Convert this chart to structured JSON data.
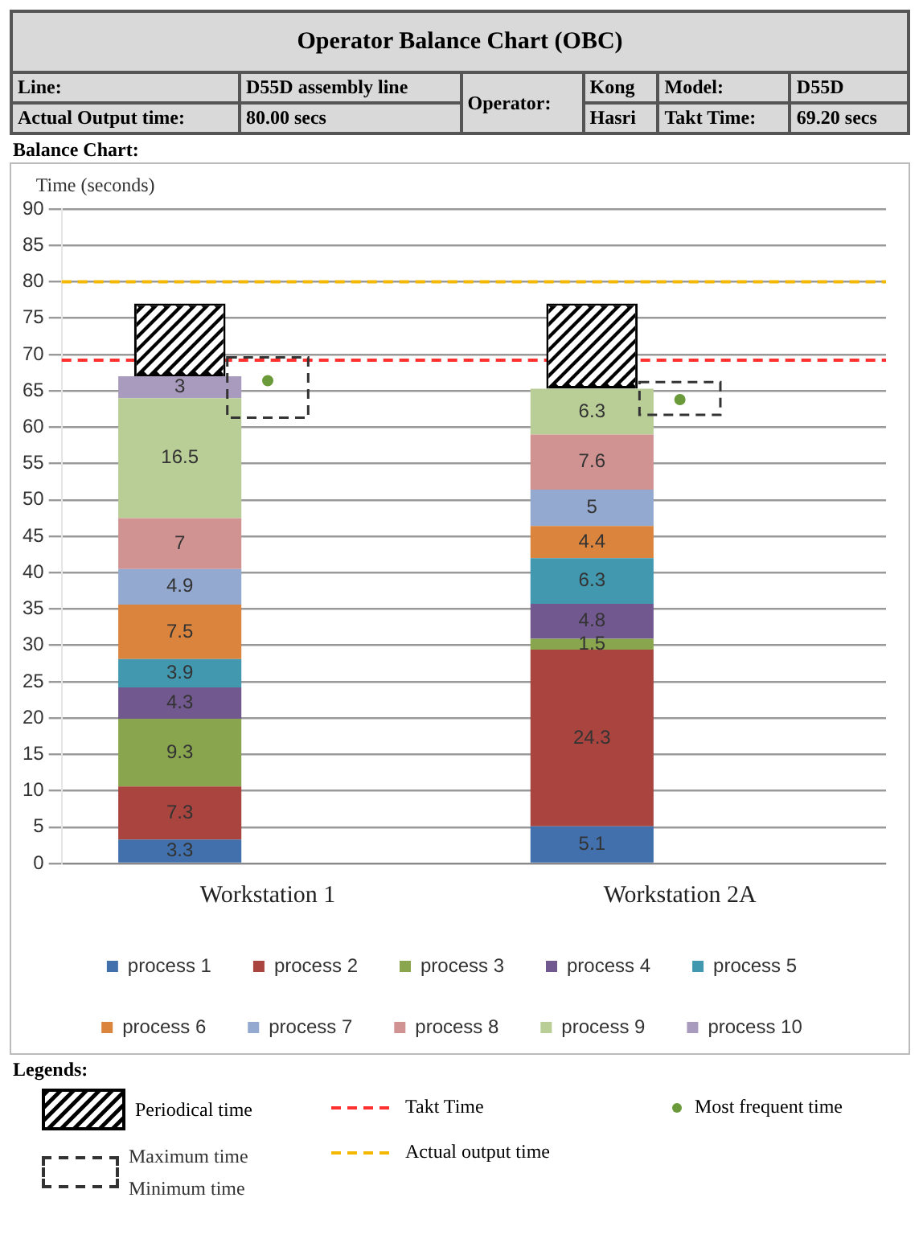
{
  "chart_data": {
    "type": "bar",
    "title": "Operator Balance Chart (OBC)",
    "ylabel": "Time (seconds)",
    "categories": [
      "Workstation 1",
      "Workstation 2A"
    ],
    "ylim": [
      0,
      90
    ],
    "yticks": [
      0,
      5,
      10,
      15,
      20,
      25,
      30,
      35,
      40,
      45,
      50,
      55,
      60,
      65,
      70,
      75,
      80,
      85,
      90
    ],
    "grid": "y",
    "legend": "bottom",
    "series": [
      {
        "name": "process 1",
        "color": "#4170ac",
        "base": [
          0,
          0
        ],
        "values": [
          3.3,
          5.1
        ],
        "value_labels": [
          "3.3",
          "5.1"
        ]
      },
      {
        "name": "process 2",
        "color": "#a9443f",
        "base": [
          3.3,
          5.1
        ],
        "values": [
          7.3,
          24.3
        ],
        "value_labels": [
          "7.3",
          "24.3"
        ]
      },
      {
        "name": "process 3",
        "color": "#89a54e",
        "base": [
          10.6,
          29.4
        ],
        "values": [
          9.3,
          1.5
        ],
        "value_labels": [
          "9.3",
          "1.5"
        ]
      },
      {
        "name": "process 4",
        "color": "#71588f",
        "base": [
          19.9,
          30.9
        ],
        "values": [
          4.3,
          4.8
        ],
        "value_labels": [
          "4.3",
          "4.8"
        ]
      },
      {
        "name": "process 5",
        "color": "#4198af",
        "base": [
          24.2,
          35.7
        ],
        "values": [
          3.9,
          6.3
        ],
        "value_labels": [
          "3.9",
          "6.3"
        ]
      },
      {
        "name": "process 6",
        "color": "#db843d",
        "base": [
          28.1,
          42
        ],
        "values": [
          7.5,
          4.4
        ],
        "value_labels": [
          "7.5",
          "4.4"
        ]
      },
      {
        "name": "process 7",
        "color": "#93a9cf",
        "base": [
          35.6,
          46.4
        ],
        "values": [
          4.9,
          5
        ],
        "value_labels": [
          "4.9",
          "5"
        ]
      },
      {
        "name": "process 8",
        "color": "#d19392",
        "base": [
          40.5,
          51.4
        ],
        "values": [
          7,
          7.6
        ],
        "value_labels": [
          "7",
          "7.6"
        ]
      },
      {
        "name": "process 9",
        "color": "#b9cd96",
        "base": [
          47.5,
          59
        ],
        "values": [
          16.5,
          6.3
        ],
        "value_labels": [
          "16.5",
          "6.3"
        ]
      },
      {
        "name": "process 10",
        "color": "#a99bbd",
        "base": [
          64,
          null
        ],
        "values": [
          3,
          null
        ],
        "value_labels": [
          "3",
          null
        ]
      },
      {
        "name": "Periodical time",
        "type": "bar",
        "color": "#000000",
        "base": [
          67,
          65.3
        ],
        "values": [
          10,
          11.7
        ]
      },
      {
        "name": "Maximum time",
        "type": "bar",
        "color": "#333333",
        "line_style": "dashed",
        "base": [
          61.3,
          61.7
        ],
        "values": [
          8.3,
          4.5
        ]
      },
      {
        "name": "Most frequent time",
        "type": "scatter",
        "marker": "circle",
        "color": "#6a9a3a",
        "x": [
          "Workstation 1",
          "Workstation 2A"
        ],
        "values": [
          66.4,
          63.8
        ]
      }
    ],
    "ref_lines": [
      {
        "axis": "y",
        "value": 69.2,
        "label": "Takt Time",
        "color": "#ff3030",
        "line_style": "dashed"
      },
      {
        "axis": "y",
        "value": 80,
        "label": "Actual output time",
        "color": "#f5b800",
        "line_style": "dashed"
      }
    ],
    "annotations": [
      "Line:",
      "D55D assembly line",
      "Operator:",
      "Kong",
      "Hasri",
      "Model:",
      "D55D",
      "Actual Output time:",
      "80.00 secs",
      "Takt Time:",
      "69.20 secs",
      "Balance Chart:",
      "Legends:",
      "Minimum time"
    ]
  }
}
